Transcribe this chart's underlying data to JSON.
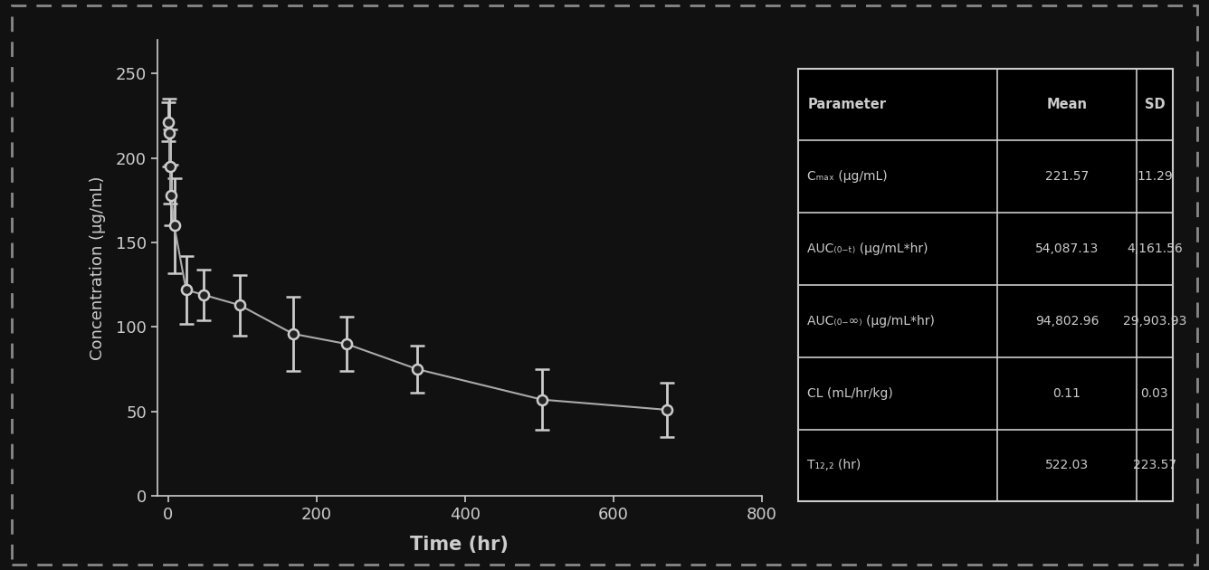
{
  "x": [
    0,
    1,
    2,
    4,
    8,
    24,
    48,
    96,
    168,
    240,
    336,
    504,
    672
  ],
  "y": [
    221.57,
    215,
    195,
    178,
    160,
    122,
    119,
    113,
    96,
    90,
    75,
    57,
    51
  ],
  "yerr": [
    11.29,
    20,
    22,
    18,
    28,
    20,
    15,
    18,
    22,
    16,
    14,
    18,
    16
  ],
  "xlabel": "Time (hr)",
  "ylabel": "Concentration (μg/mL)",
  "xlim": [
    -15,
    800
  ],
  "ylim": [
    0,
    270
  ],
  "xticks": [
    0,
    200,
    400,
    600,
    800
  ],
  "yticks": [
    0,
    50,
    100,
    150,
    200,
    250
  ],
  "background_color": "#111111",
  "plot_bg_color": "#111111",
  "axis_color": "#cccccc",
  "text_color": "#cccccc",
  "marker_facecolor": "#222222",
  "marker_edgecolor": "#cccccc",
  "line_color": "#aaaaaa",
  "table_header": [
    "Parameter",
    "Mean",
    "SD"
  ],
  "table_rows": [
    [
      "Cₘₐₓ (μg/mL)",
      "221.57",
      "11.29"
    ],
    [
      "AUC₍₀₋ₜ₎ (μg/mL*hr)",
      "54,087.13",
      "4,161.56"
    ],
    [
      "AUC₍₀₋∞₎ (μg/mL*hr)",
      "94,802.96",
      "29,903.93"
    ],
    [
      "CL (mL/hr/kg)",
      "0.11",
      "0.03"
    ],
    [
      "T₁₂,₂ (hr)",
      "522.03",
      "223.57"
    ]
  ]
}
